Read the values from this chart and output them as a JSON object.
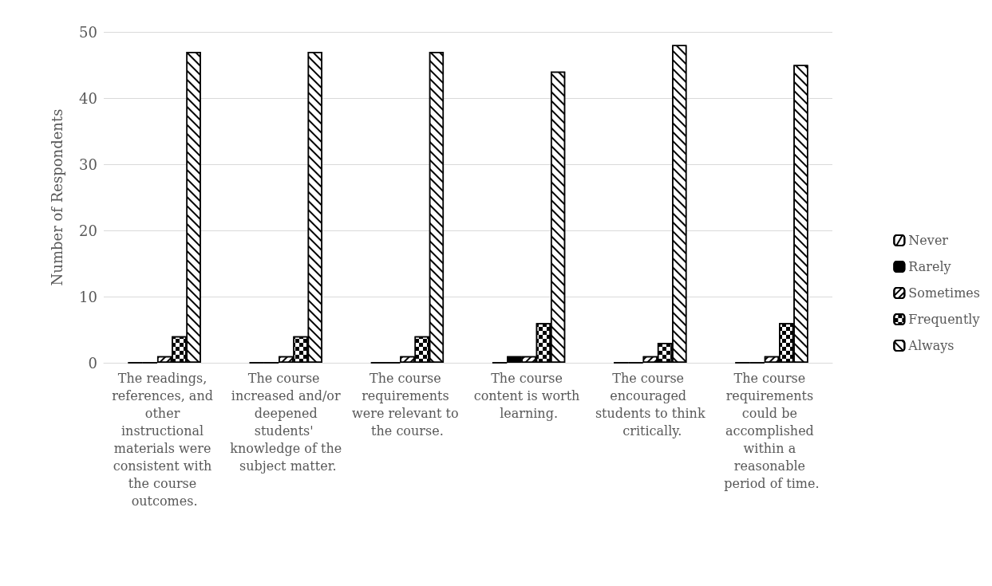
{
  "chart_data": {
    "type": "bar",
    "ylabel": "Number of Respondents",
    "categories": [
      "The readings, references, and other instructional materials were consistent with the course outcomes.",
      "The course increased and/or deepened students' knowledge of the subject matter.",
      "The course requirements were relevant to the course.",
      "The course content is worth learning.",
      "The course encouraged students to think critically.",
      "The course requirements could be accomplished within a reasonable period of time."
    ],
    "series": [
      {
        "name": "Never",
        "color": "#000000",
        "values": [
          0,
          0,
          0,
          0,
          0,
          0
        ]
      },
      {
        "name": "Rarely",
        "color": "#000000",
        "values": [
          0,
          0,
          0,
          1,
          0,
          0
        ]
      },
      {
        "name": "Sometimes",
        "color": "#000000",
        "values": [
          1,
          1,
          1,
          1,
          1,
          1
        ]
      },
      {
        "name": "Frequently",
        "color": "#000000",
        "values": [
          4,
          4,
          4,
          6,
          3,
          6
        ]
      },
      {
        "name": "Always",
        "color": "#000000",
        "values": [
          47,
          47,
          47,
          44,
          48,
          45
        ]
      }
    ],
    "ylim": [
      0,
      50
    ],
    "yticks": [
      0,
      10,
      20,
      30,
      40,
      50
    ],
    "grid": "y",
    "legend": "right"
  }
}
